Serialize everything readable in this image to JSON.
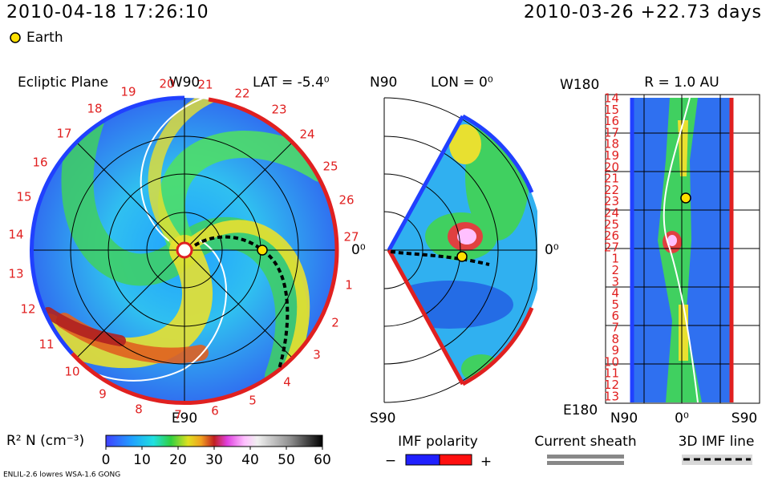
{
  "header": {
    "datetime": "2010-04-18 17:26:10",
    "elapsed": "2010-03-26 +22.73 days",
    "earth": "Earth"
  },
  "ecliptic": {
    "title": "Ecliptic Plane",
    "top": "W90",
    "lat": "LAT = -5.4⁰",
    "right": "0⁰",
    "bottom": "E90",
    "rotations": [
      "19",
      "18",
      "17",
      "16",
      "15",
      "14",
      "13",
      "12",
      "11",
      "10",
      "9",
      "8",
      "7",
      "6",
      "5",
      "4",
      "3",
      "2",
      "1",
      "27",
      "26",
      "25",
      "24",
      "23",
      "22",
      "21",
      "20"
    ]
  },
  "meridional": {
    "top": "N90",
    "lon": "LON = 0⁰",
    "bottom": "S90",
    "right": "0⁰"
  },
  "radial": {
    "top": "W180",
    "r": "R = 1.0 AU",
    "bottom": "E180",
    "x_left": "N90",
    "x_mid": "0⁰",
    "x_right": "S90",
    "rotations": [
      "14",
      "15",
      "16",
      "17",
      "18",
      "19",
      "20",
      "21",
      "22",
      "23",
      "24",
      "25",
      "26",
      "27",
      "1",
      "2",
      "3",
      "4",
      "5",
      "6",
      "7",
      "8",
      "9",
      "10",
      "11",
      "12",
      "13"
    ]
  },
  "colorbar": {
    "label": "R² N (cm⁻³)",
    "ticks": [
      0,
      10,
      20,
      30,
      40,
      50,
      60
    ]
  },
  "legend": {
    "imf": "IMF polarity",
    "minus": "−",
    "plus": "+",
    "sheath": "Current sheath",
    "imf_line": "3D IMF line"
  },
  "footer": "ENLIL-2.6 lowres WSA-1.6 GONG"
}
